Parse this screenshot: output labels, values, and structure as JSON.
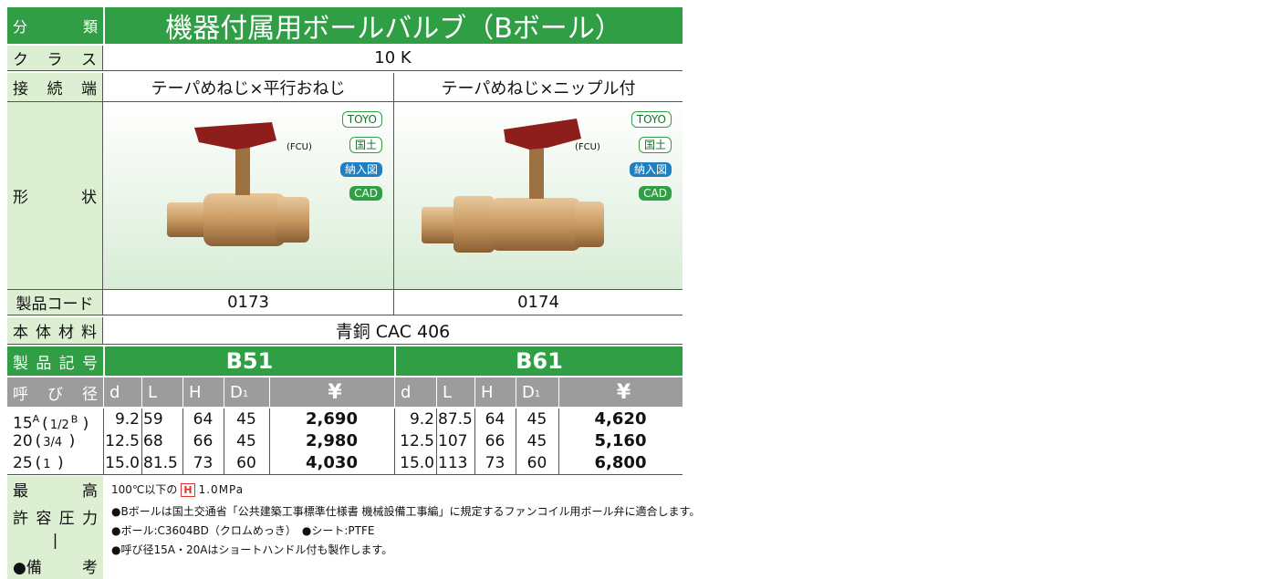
{
  "header": {
    "category": [
      "分",
      "類"
    ],
    "title": "機器付属用ボールバルブ（Bボール）"
  },
  "specs": {
    "class": {
      "label": [
        "ク",
        "ラ",
        "ス"
      ],
      "value": "10 K"
    },
    "connection": {
      "label": [
        "接",
        "続",
        "端"
      ],
      "values": [
        "テーパめねじ×平行おねじ",
        "テーパめねじ×ニップル付"
      ]
    },
    "shape": {
      "label": [
        "形",
        "状"
      ],
      "products": [
        {
          "fcu": "(FCU)",
          "badges": [
            "TOYO",
            "国土",
            "納入図",
            "CAD"
          ]
        },
        {
          "fcu": "(FCU)",
          "badges": [
            "TOYO",
            "国土",
            "納入図",
            "CAD"
          ]
        }
      ]
    },
    "code": {
      "label": "製品コード",
      "values": [
        "0173",
        "0174"
      ]
    },
    "material": {
      "label": [
        "本",
        "体",
        "材",
        "料"
      ],
      "value": "青銅 CAC 406"
    },
    "model": {
      "label": [
        "製",
        "品",
        "記",
        "号"
      ],
      "values": [
        "B51",
        "B61"
      ]
    }
  },
  "table": {
    "label": [
      "呼",
      "び",
      "径"
    ],
    "columns": [
      {
        "text": "d"
      },
      {
        "text": "L"
      },
      {
        "text": "H"
      },
      {
        "text": "D",
        "sub": "1"
      },
      {
        "text": "¥"
      }
    ],
    "rows": [
      {
        "size": {
          "main": "15",
          "unit": "A",
          "inch": "1/2",
          "inch_unit": "B"
        },
        "b51": [
          "9.2",
          "59",
          "64",
          "45",
          "2,690"
        ],
        "b61": [
          "9.2",
          "87.5",
          "64",
          "45",
          "4,620"
        ]
      },
      {
        "size": {
          "main": "20",
          "inch": "3/4"
        },
        "b51": [
          "12.5",
          "68",
          "66",
          "45",
          "2,980"
        ],
        "b61": [
          "12.5",
          "107",
          "66",
          "45",
          "5,160"
        ]
      },
      {
        "size": {
          "main": "25",
          "inch": "1"
        },
        "b51": [
          "15.0",
          "81.5",
          "73",
          "60",
          "4,030"
        ],
        "b61": [
          "15.0",
          "113",
          "73",
          "60",
          "6,800"
        ]
      }
    ]
  },
  "notes": {
    "label": [
      [
        "最",
        "高"
      ],
      [
        "許",
        "容",
        "圧",
        "力"
      ],
      [
        "|"
      ],
      [
        "●備",
        "考"
      ]
    ],
    "pressure": {
      "prefix": "100℃以下の",
      "mark": "H",
      "value": "1.0MPa"
    },
    "lines": [
      "●Bボールは国土交通省「公共建築工事標準仕様書 機械設備工事編」に規定するファンコイル用ボール弁に適合します。",
      "●ボール:C3604BD（クロムめっき）　●シート:PTFE",
      "●呼び径15A・20Aはショートハンドル付も製作します。"
    ]
  }
}
